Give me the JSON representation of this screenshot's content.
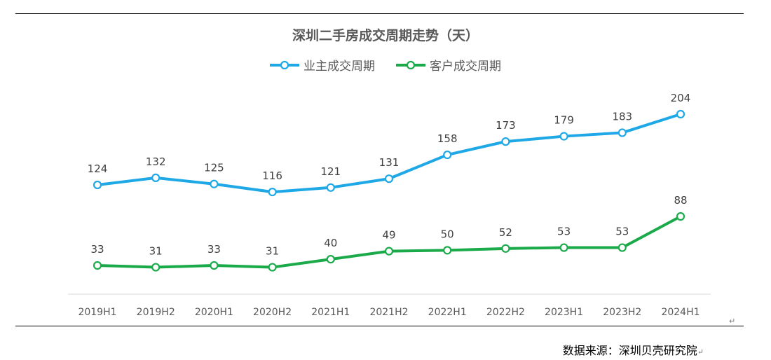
{
  "chart_data": {
    "type": "line",
    "title": "深圳二手房成交周期走势（天）",
    "categories": [
      "2019H1",
      "2019H2",
      "2020H1",
      "2020H2",
      "2021H1",
      "2021H2",
      "2022H1",
      "2022H2",
      "2023H1",
      "2023H2",
      "2024H1"
    ],
    "series": [
      {
        "name": "业主成交周期",
        "color": "#1FA8E6",
        "values": [
          124,
          132,
          125,
          116,
          121,
          131,
          158,
          173,
          179,
          183,
          204
        ]
      },
      {
        "name": "客户成交周期",
        "color": "#1BAA4A",
        "values": [
          33,
          31,
          33,
          31,
          40,
          49,
          50,
          52,
          53,
          53,
          88
        ]
      }
    ],
    "grid": false,
    "legend_position": "top"
  },
  "source": "数据来源：深圳贝壳研究院",
  "paragraph_mark": "↵"
}
